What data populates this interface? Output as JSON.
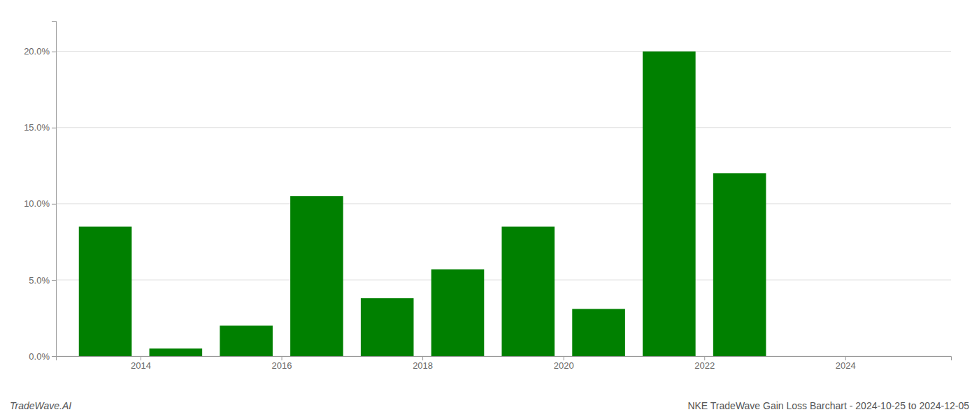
{
  "chart_data": {
    "type": "bar",
    "title": "NKE TradeWave Gain Loss Barchart - 2024-10-25 to 2024-12-05",
    "annotations": [
      "TradeWave.AI"
    ],
    "x": [
      2013,
      2014,
      2015,
      2016,
      2017,
      2018,
      2019,
      2020,
      2021,
      2022,
      2023
    ],
    "values": [
      0.085,
      0.005,
      0.02,
      0.105,
      0.038,
      0.057,
      0.085,
      0.031,
      0.2,
      0.12,
      0.0
    ],
    "color": "#008000",
    "xlim": [
      2012.3,
      2025.0
    ],
    "xticks": [
      {
        "value": 2013.5,
        "label": "2014"
      },
      {
        "value": 2015.5,
        "label": "2016"
      },
      {
        "value": 2017.5,
        "label": "2018"
      },
      {
        "value": 2019.5,
        "label": "2020"
      },
      {
        "value": 2021.5,
        "label": "2022"
      },
      {
        "value": 2023.5,
        "label": "2024"
      }
    ],
    "ylim": [
      0.0,
      0.22
    ],
    "yticks": [
      {
        "value": 0.0,
        "label": "0.0%"
      },
      {
        "value": 0.05,
        "label": "5.0%"
      },
      {
        "value": 0.1,
        "label": "10.0%"
      },
      {
        "value": 0.15,
        "label": "15.0%"
      },
      {
        "value": 0.2,
        "label": "20.0%"
      }
    ],
    "grid": true
  }
}
